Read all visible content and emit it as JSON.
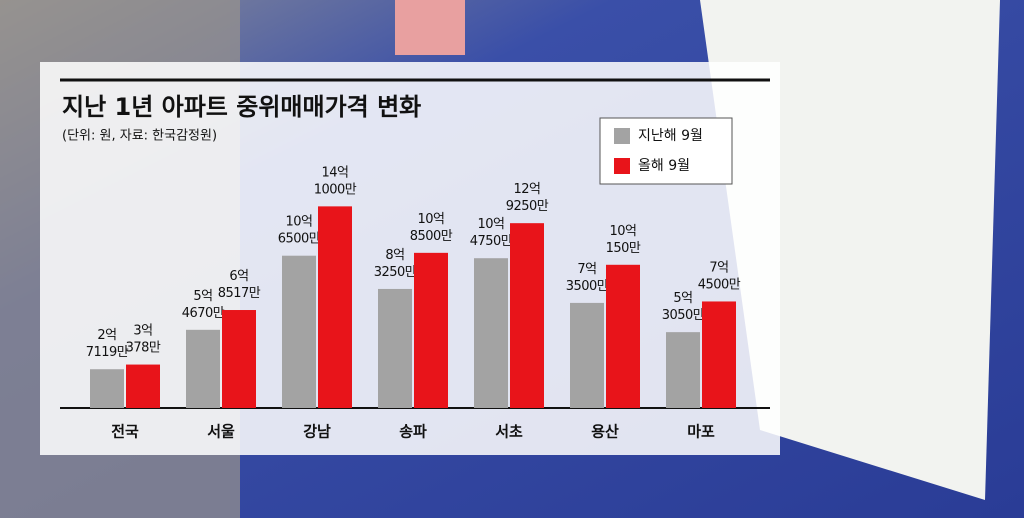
{
  "chart_data": {
    "type": "bar",
    "title": "지난 1년 아파트 중위매매가격 변화",
    "subtitle": "(단위: 원, 자료: 한국감정원)",
    "categories": [
      "전국",
      "서울",
      "강남",
      "송파",
      "서초",
      "용산",
      "마포"
    ],
    "series": [
      {
        "name": "지난해 9월",
        "color": "#a3a3a3",
        "values": [
          271190000,
          546700000,
          1065000000,
          832500000,
          1047500000,
          735000000,
          530500000
        ],
        "value_labels": [
          [
            "2억",
            "7119만"
          ],
          [
            "5억",
            "4670만"
          ],
          [
            "10억",
            "6500만"
          ],
          [
            "8억",
            "3250만"
          ],
          [
            "10억",
            "4750만"
          ],
          [
            "7억",
            "3500만"
          ],
          [
            "5억",
            "3050만"
          ]
        ]
      },
      {
        "name": "올해 9월",
        "color": "#e8141a",
        "values": [
          303780000,
          685170000,
          1410000000,
          1085000000,
          1292500000,
          1001500000,
          745000000
        ],
        "value_labels": [
          [
            "3억",
            "378만"
          ],
          [
            "6억",
            "8517만"
          ],
          [
            "14억",
            "1000만"
          ],
          [
            "10억",
            "8500만"
          ],
          [
            "12억",
            "9250만"
          ],
          [
            "10억",
            "150만"
          ],
          [
            "7억",
            "4500만"
          ]
        ]
      }
    ],
    "ylim": [
      0,
      2000000000
    ]
  }
}
